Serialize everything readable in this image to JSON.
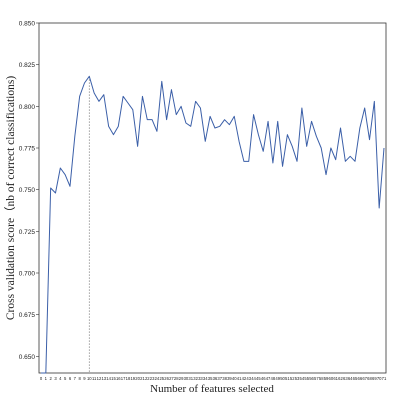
{
  "chart_data": {
    "type": "line",
    "title": "",
    "xlabel": "Number of features selected",
    "ylabel": "Cross validation score（nb of correct classifications)",
    "xlim": [
      0,
      71
    ],
    "ylim": [
      0.64,
      0.85
    ],
    "yticks": [
      "0.650",
      "0.675",
      "0.700",
      "0.725",
      "0.750",
      "0.775",
      "0.800",
      "0.825",
      "0.850"
    ],
    "ytick_values": [
      0.65,
      0.675,
      0.7,
      0.725,
      0.75,
      0.775,
      0.8,
      0.825,
      0.85
    ],
    "xticks": [
      "0",
      "1",
      "2",
      "3",
      "4",
      "5",
      "6",
      "7",
      "8",
      "9",
      "10",
      "11",
      "12",
      "13",
      "14",
      "15",
      "16",
      "17",
      "18",
      "19",
      "20",
      "21",
      "22",
      "23",
      "24",
      "25",
      "26",
      "27",
      "28",
      "29",
      "30",
      "31",
      "32",
      "33",
      "34",
      "35",
      "36",
      "37",
      "38",
      "39",
      "40",
      "41",
      "42",
      "43",
      "44",
      "45",
      "46",
      "47",
      "48",
      "49",
      "50",
      "51",
      "52",
      "53",
      "54",
      "55",
      "56",
      "57",
      "58",
      "59",
      "60",
      "61",
      "62",
      "63",
      "64",
      "65",
      "66",
      "67",
      "68",
      "69",
      "70",
      "71"
    ],
    "grid": false,
    "legend": "none",
    "marker_x": 10,
    "series": [
      {
        "color": "#3b5fa8",
        "x": [
          0,
          1,
          2,
          3,
          4,
          5,
          6,
          7,
          8,
          9,
          10,
          11,
          12,
          13,
          14,
          15,
          16,
          17,
          18,
          19,
          20,
          21,
          22,
          23,
          24,
          25,
          26,
          27,
          28,
          29,
          30,
          31,
          32,
          33,
          34,
          35,
          36,
          37,
          38,
          39,
          40,
          41,
          42,
          43,
          44,
          45,
          46,
          47,
          48,
          49,
          50,
          51,
          52,
          53,
          54,
          55,
          56,
          57,
          58,
          59,
          60,
          61,
          62,
          63,
          64,
          65,
          66,
          67,
          68,
          69,
          70,
          71
        ],
        "y": [
          0.64,
          0.64,
          0.751,
          0.748,
          0.763,
          0.759,
          0.752,
          0.782,
          0.806,
          0.814,
          0.818,
          0.808,
          0.803,
          0.807,
          0.788,
          0.783,
          0.788,
          0.806,
          0.802,
          0.798,
          0.776,
          0.806,
          0.792,
          0.792,
          0.785,
          0.815,
          0.792,
          0.81,
          0.795,
          0.8,
          0.79,
          0.788,
          0.803,
          0.799,
          0.779,
          0.794,
          0.787,
          0.788,
          0.792,
          0.789,
          0.794,
          0.779,
          0.767,
          0.767,
          0.795,
          0.783,
          0.773,
          0.791,
          0.766,
          0.791,
          0.764,
          0.783,
          0.776,
          0.767,
          0.799,
          0.776,
          0.791,
          0.782,
          0.775,
          0.759,
          0.775,
          0.768,
          0.787,
          0.767,
          0.77,
          0.767,
          0.787,
          0.799,
          0.78,
          0.803,
          0.739,
          0.775
        ]
      }
    ]
  }
}
